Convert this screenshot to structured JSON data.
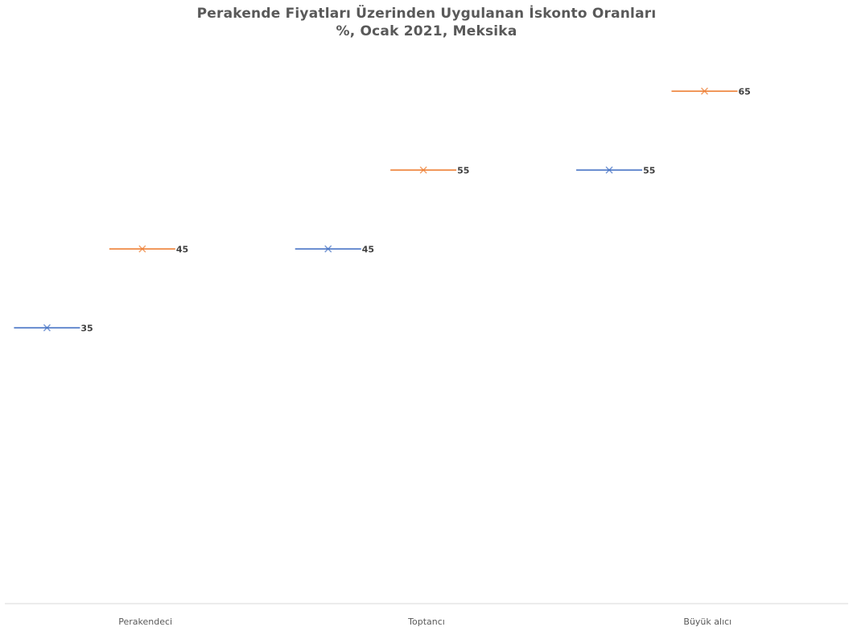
{
  "chart_data": {
    "type": "line",
    "title": "Perakende Fiyatları Üzerinden Uygulanan İskonto Oranları",
    "subtitle": "%, Ocak 2021, Meksika",
    "categories": [
      "Perakendeci",
      "Toptancı",
      "Büyük alıcı"
    ],
    "series": [
      {
        "values": [
          35,
          45,
          55
        ],
        "color": "#4472C4"
      },
      {
        "values": [
          45,
          55,
          65
        ],
        "color": "#ED7D31"
      }
    ],
    "ylim": [
      0,
      75
    ],
    "grid": false,
    "legend": false,
    "marker": "x"
  }
}
